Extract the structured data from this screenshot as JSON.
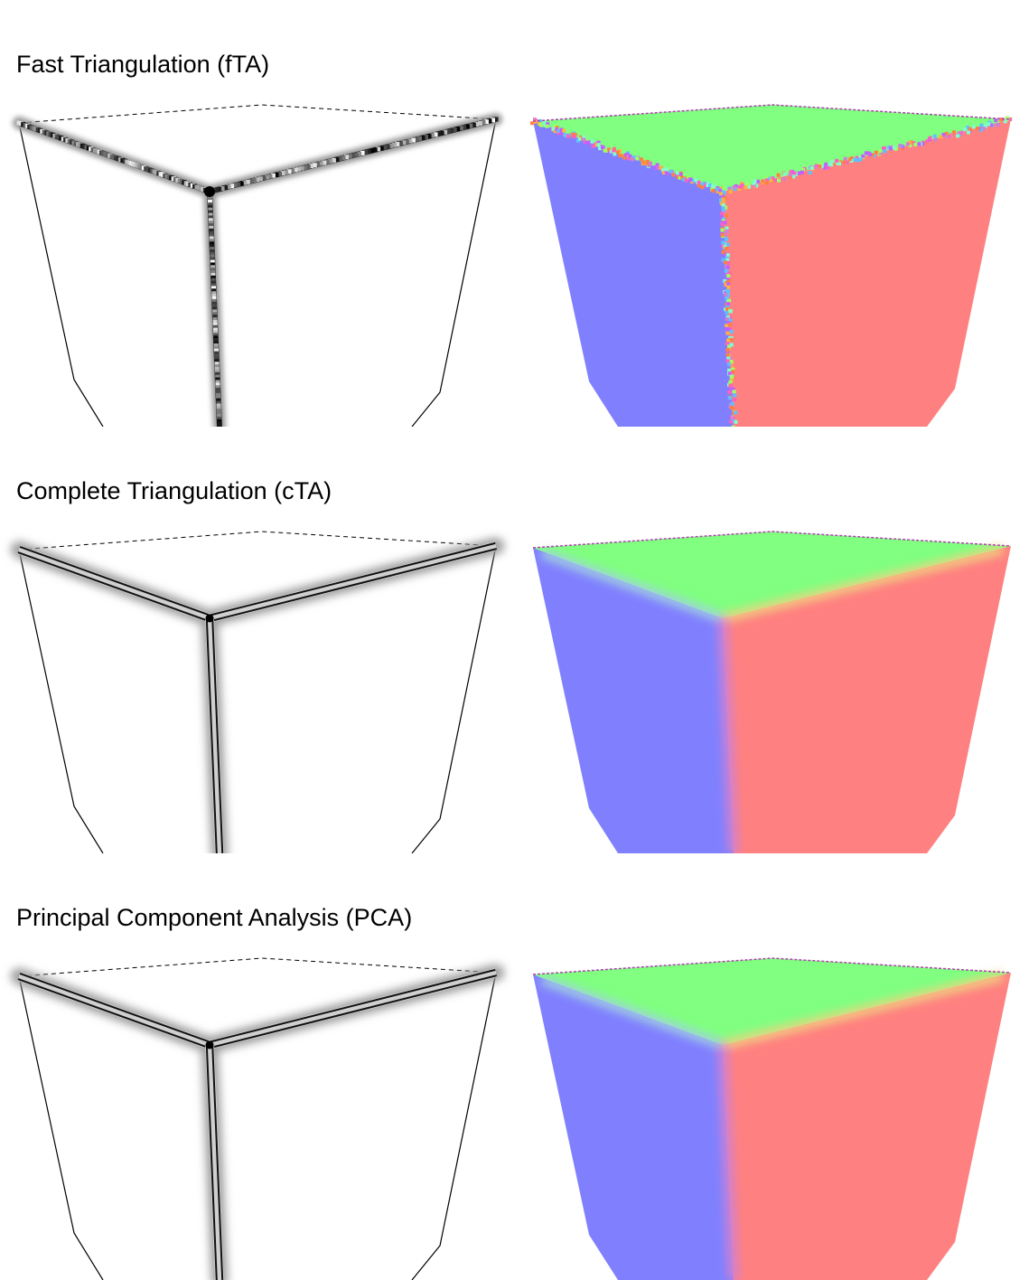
{
  "sections": [
    {
      "title": "Fast Triangulation (fTA)",
      "method": "fTA",
      "edge_style": "noisy"
    },
    {
      "title": "Complete Triangulation (cTA)",
      "method": "cTA",
      "edge_style": "smooth"
    },
    {
      "title": "Principal Component Analysis (PCA)",
      "method": "PCA",
      "edge_style": "smooth"
    }
  ],
  "colors": {
    "top_face": "#80ff80",
    "left_face": "#8080ff",
    "right_face": "#ff8080",
    "edge": "#000000",
    "background": "#ffffff"
  }
}
